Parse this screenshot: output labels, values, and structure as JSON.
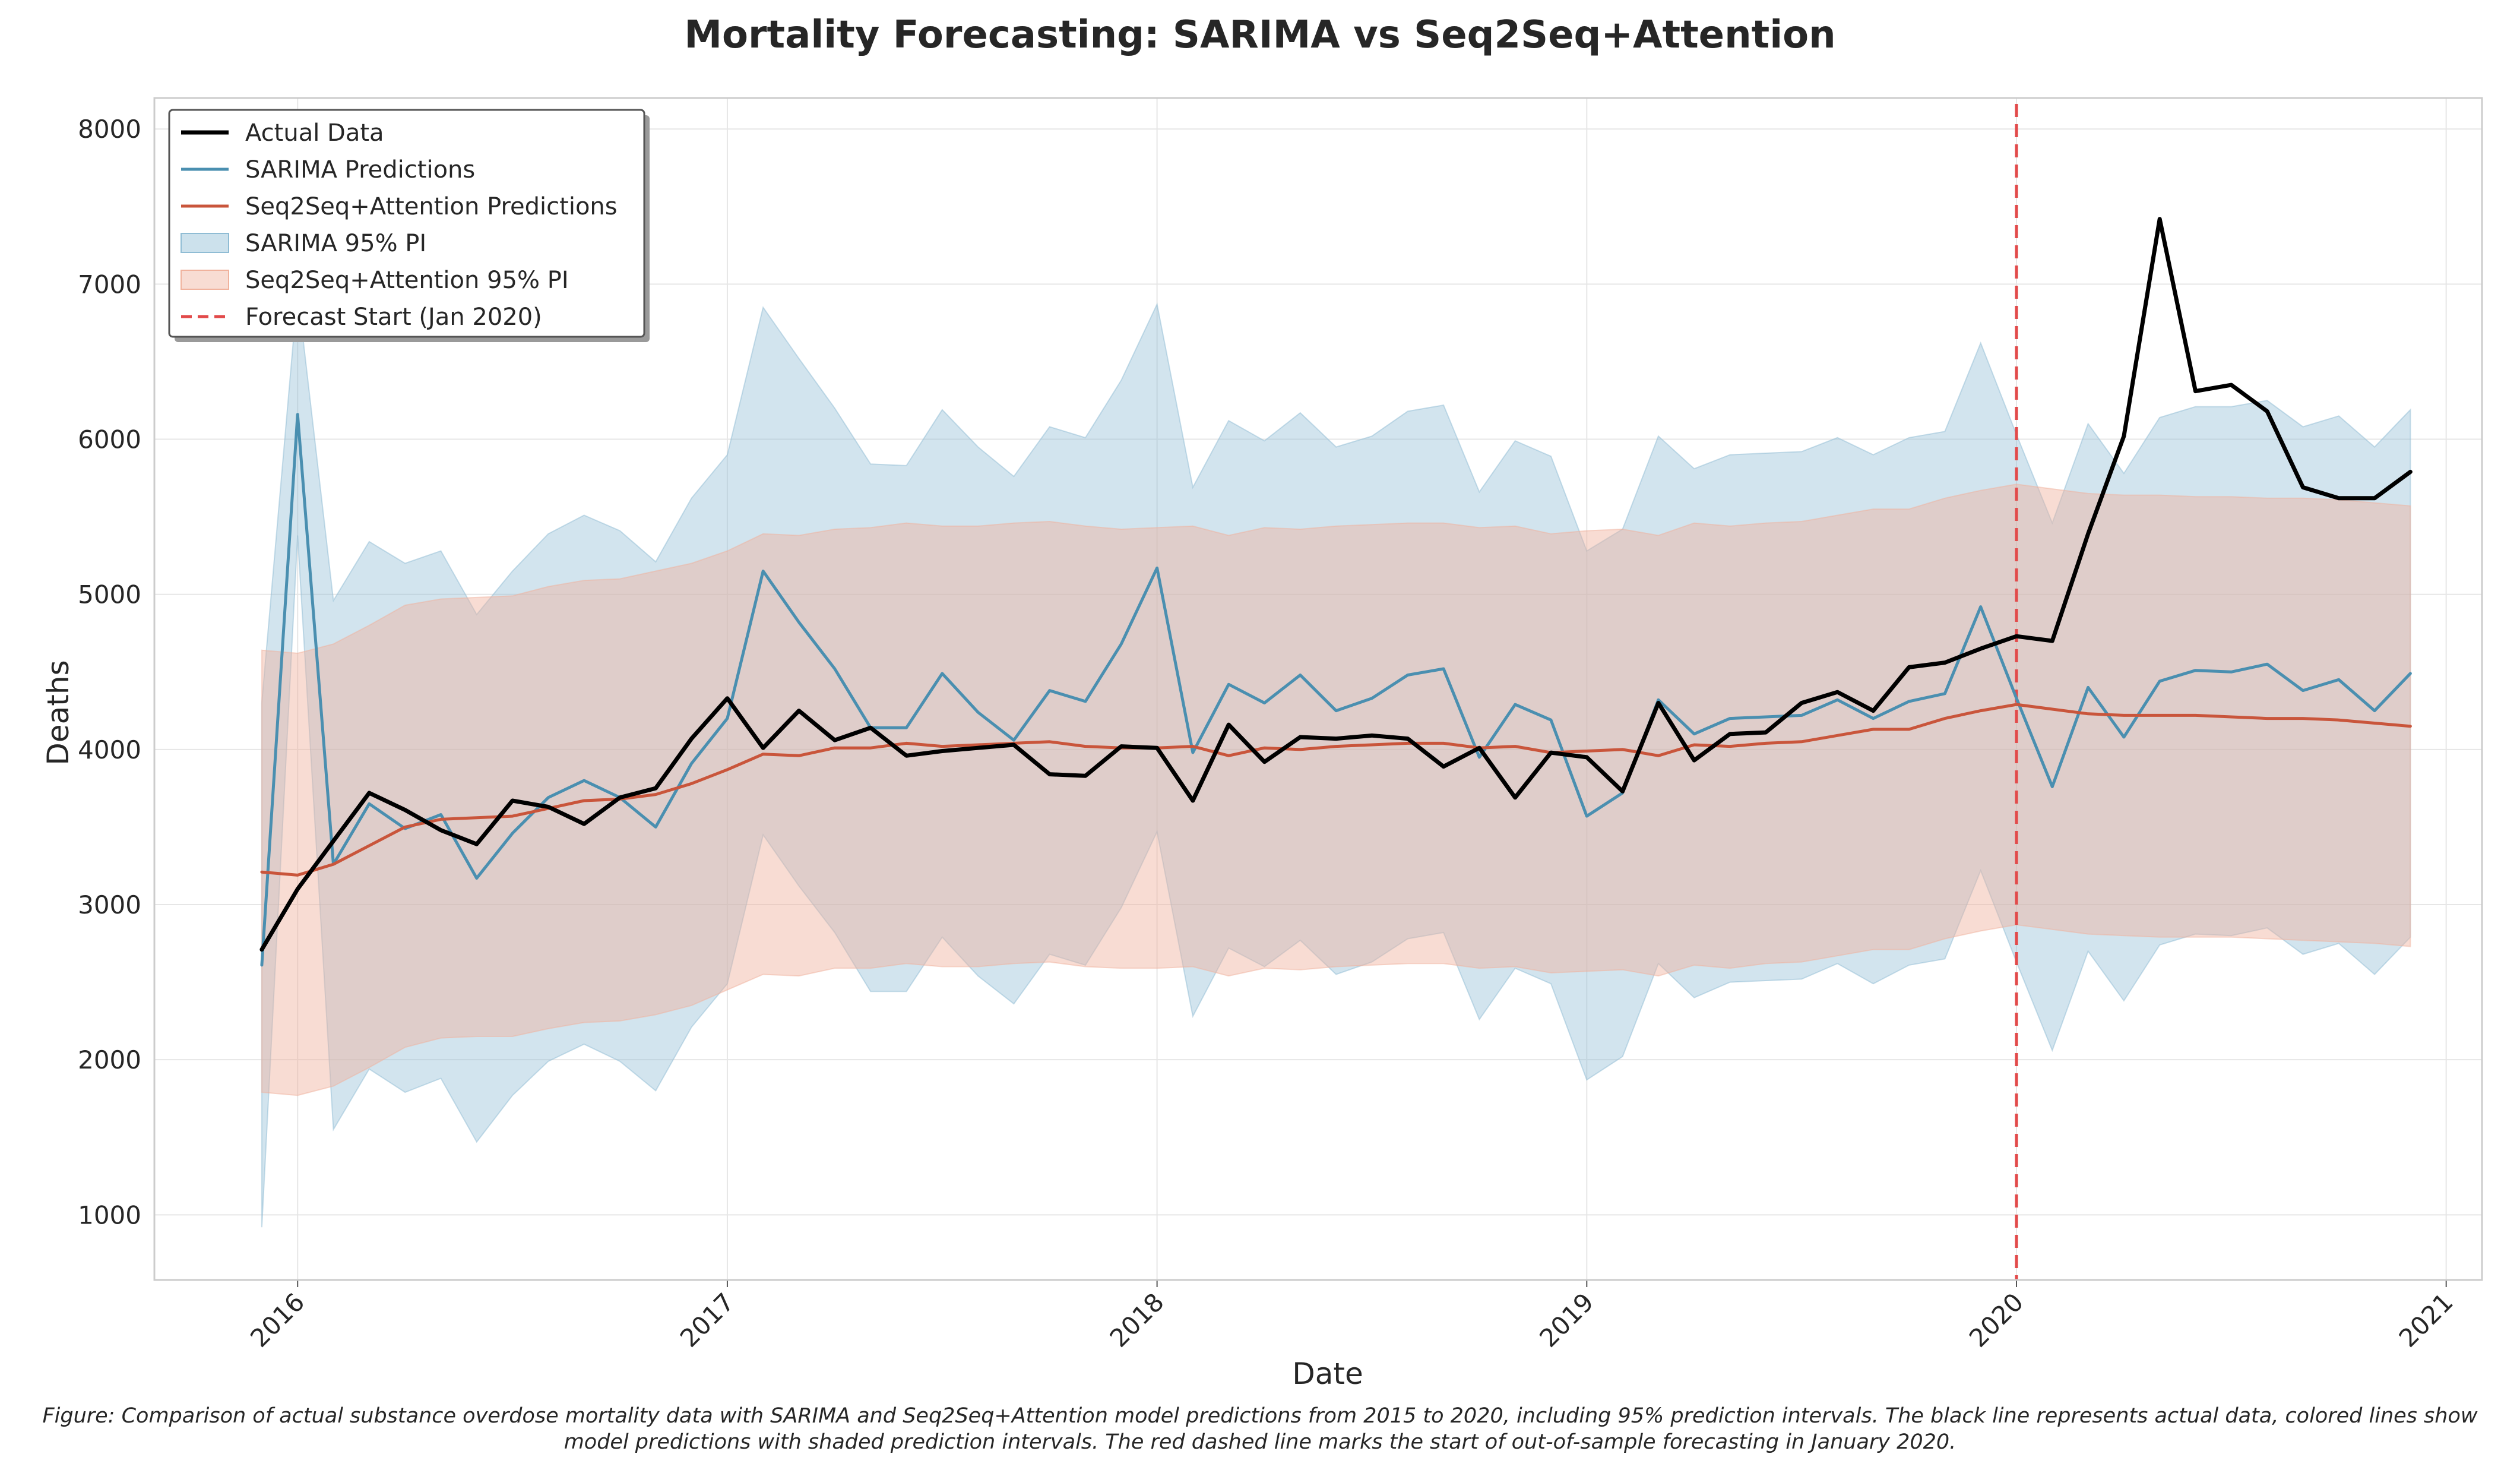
{
  "chart_data": {
    "type": "line",
    "title": "Mortality Forecasting: SARIMA vs Seq2Seq+Attention",
    "xlabel": "Date",
    "ylabel": "Deaths",
    "x_start": "2015-12",
    "xlim": [
      "2015-09",
      "2021-02"
    ],
    "ylim": [
      580,
      8200
    ],
    "x_ticks": [
      "2016",
      "2017",
      "2018",
      "2019",
      "2020",
      "2021"
    ],
    "y_ticks": [
      1000,
      2000,
      3000,
      4000,
      5000,
      6000,
      7000,
      8000
    ],
    "grid": true,
    "legend_position": "upper-left",
    "forecast_start": "2020-01",
    "forecast_start_label": "Forecast Start (Jan 2020)",
    "series": [
      {
        "name": "Actual Data",
        "color": "#000000",
        "values": [
          2710,
          3100,
          3410,
          3720,
          3610,
          3480,
          3390,
          3670,
          3630,
          3520,
          3690,
          3750,
          4070,
          4330,
          4010,
          4250,
          4060,
          4140,
          3960,
          3990,
          4010,
          4030,
          3840,
          3830,
          4020,
          4010,
          3670,
          4160,
          3920,
          4080,
          4070,
          4090,
          4070,
          3890,
          4010,
          3690,
          3980,
          3950,
          3730,
          4300,
          3930,
          4100,
          4110,
          4300,
          4370,
          4250,
          4530,
          4560,
          4650,
          4730,
          4700,
          5390,
          6020,
          7420,
          6310,
          6350,
          6180,
          5690,
          5620,
          5620,
          5790
        ]
      },
      {
        "name": "SARIMA Predictions",
        "color": "#4a8fb0",
        "values": [
          2610,
          6160,
          3260,
          3650,
          3490,
          3580,
          3170,
          3460,
          3690,
          3800,
          3690,
          3500,
          3910,
          4200,
          5150,
          4820,
          4520,
          4140,
          4140,
          4490,
          4240,
          4060,
          4380,
          4310,
          4680,
          5170,
          3980,
          4420,
          4300,
          4480,
          4250,
          4330,
          4480,
          4520,
          3950,
          4290,
          4190,
          3570,
          3720,
          4320,
          4100,
          4200,
          4210,
          4220,
          4320,
          4200,
          4310,
          4360,
          4920,
          4330,
          3760,
          4400,
          4080,
          4440,
          4510,
          4500,
          4550,
          4380,
          4450,
          4250,
          4490
        ]
      },
      {
        "name": "Seq2Seq+Attention Predictions",
        "color": "#c9553b",
        "values": [
          3210,
          3190,
          3260,
          3380,
          3500,
          3550,
          3560,
          3570,
          3620,
          3670,
          3680,
          3710,
          3780,
          3870,
          3970,
          3960,
          4010,
          4010,
          4040,
          4020,
          4030,
          4040,
          4050,
          4020,
          4010,
          4010,
          4020,
          3960,
          4010,
          4000,
          4020,
          4030,
          4040,
          4040,
          4010,
          4020,
          3980,
          3990,
          4000,
          3960,
          4030,
          4020,
          4040,
          4050,
          4090,
          4130,
          4130,
          4200,
          4250,
          4290,
          4260,
          4230,
          4220,
          4220,
          4220,
          4210,
          4200,
          4200,
          4190,
          4170,
          4150
        ]
      }
    ],
    "bands": [
      {
        "name": "SARIMA 95% PI",
        "color": "#8fbcd4",
        "upper": [
          4300,
          6950,
          4960,
          5340,
          5200,
          5280,
          4870,
          5150,
          5390,
          5510,
          5410,
          5210,
          5620,
          5900,
          6850,
          6520,
          6200,
          5840,
          5830,
          6190,
          5950,
          5760,
          6080,
          6010,
          6380,
          6870,
          5690,
          6120,
          5990,
          6170,
          5950,
          6020,
          6180,
          6220,
          5660,
          5990,
          5890,
          5280,
          5420,
          6020,
          5810,
          5900,
          5910,
          5920,
          6010,
          5900,
          6010,
          6050,
          6620,
          6030,
          5460,
          6100,
          5780,
          6140,
          6210,
          6210,
          6250,
          6080,
          6150,
          5950,
          6190
        ],
        "lower": [
          920,
          5380,
          1550,
          1940,
          1790,
          1880,
          1470,
          1770,
          1990,
          2100,
          1990,
          1800,
          2210,
          2490,
          3450,
          3120,
          2820,
          2440,
          2440,
          2790,
          2540,
          2360,
          2680,
          2610,
          2980,
          3470,
          2280,
          2720,
          2600,
          2770,
          2550,
          2630,
          2780,
          2820,
          2260,
          2590,
          2490,
          1870,
          2020,
          2620,
          2400,
          2500,
          2510,
          2520,
          2620,
          2490,
          2610,
          2650,
          3220,
          2630,
          2060,
          2700,
          2380,
          2740,
          2810,
          2800,
          2850,
          2680,
          2750,
          2550,
          2790
        ]
      },
      {
        "name": "Seq2Seq+Attention 95% PI",
        "color": "#f0b29d",
        "upper": [
          4640,
          4620,
          4680,
          4800,
          4930,
          4970,
          4980,
          4990,
          5050,
          5090,
          5100,
          5150,
          5200,
          5280,
          5390,
          5380,
          5420,
          5430,
          5460,
          5440,
          5440,
          5460,
          5470,
          5440,
          5420,
          5430,
          5440,
          5380,
          5430,
          5420,
          5440,
          5450,
          5460,
          5460,
          5430,
          5440,
          5390,
          5410,
          5420,
          5380,
          5460,
          5440,
          5460,
          5470,
          5510,
          5550,
          5550,
          5620,
          5670,
          5710,
          5680,
          5650,
          5640,
          5640,
          5630,
          5630,
          5620,
          5620,
          5610,
          5590,
          5570
        ],
        "lower": [
          1790,
          1770,
          1830,
          1950,
          2080,
          2140,
          2150,
          2150,
          2200,
          2240,
          2250,
          2290,
          2350,
          2450,
          2550,
          2540,
          2590,
          2590,
          2620,
          2600,
          2600,
          2620,
          2630,
          2600,
          2590,
          2590,
          2600,
          2540,
          2590,
          2580,
          2600,
          2610,
          2620,
          2620,
          2590,
          2600,
          2560,
          2570,
          2580,
          2540,
          2610,
          2590,
          2620,
          2630,
          2670,
          2710,
          2710,
          2780,
          2830,
          2870,
          2840,
          2810,
          2800,
          2790,
          2790,
          2790,
          2780,
          2770,
          2760,
          2750,
          2730
        ]
      }
    ],
    "legend": [
      "Actual Data",
      "SARIMA Predictions",
      "Seq2Seq+Attention Predictions",
      "SARIMA 95% PI",
      "Seq2Seq+Attention 95% PI",
      "Forecast Start (Jan 2020)"
    ]
  },
  "caption": "Figure: Comparison of actual substance overdose mortality data with SARIMA and Seq2Seq+Attention model predictions from 2015 to 2020, including 95% prediction intervals. The black line represents actual data, colored lines show model predictions with shaded prediction intervals. The red dashed line marks the start of out-of-sample forecasting in January 2020.",
  "colors": {
    "forecast_line": "#e24a4a",
    "grid": "#e6e6e6",
    "axis": "#cccccc"
  }
}
